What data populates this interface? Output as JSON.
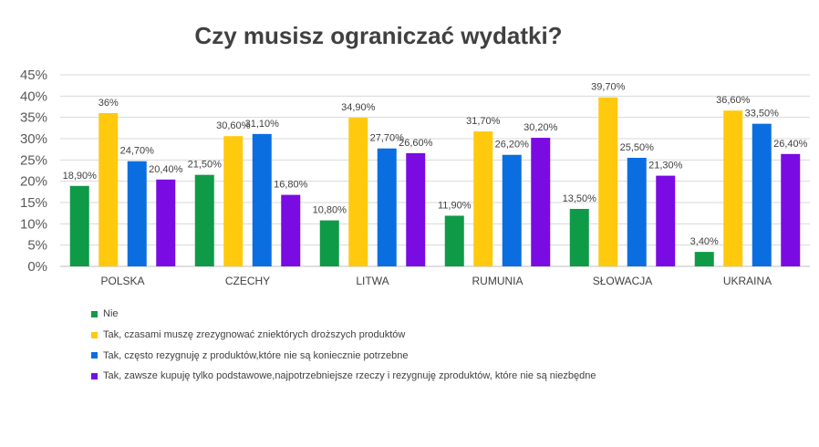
{
  "chart_data": {
    "type": "bar",
    "title": "Czy musisz ograniczać wydatki?",
    "categories": [
      "POLSKA",
      "CZECHY",
      "LITWA",
      "RUMUNIA",
      "SŁOWACJA",
      "UKRAINA"
    ],
    "series": [
      {
        "name": "Nie",
        "color": "#0f9a47",
        "values": [
          18.9,
          21.5,
          10.8,
          11.9,
          13.5,
          3.4
        ],
        "labels": [
          "18,90%",
          "21,50%",
          "10,80%",
          "11,90%",
          "13,50%",
          "3,40%"
        ]
      },
      {
        "name": "Tak, czasami muszę zrezygnować zniektórych droższych produktów",
        "color": "#ffc90e",
        "values": [
          36,
          30.6,
          34.9,
          31.7,
          39.7,
          36.6
        ],
        "labels": [
          "36%",
          "30,60%",
          "34,90%",
          "31,70%",
          "39,70%",
          "36,60%"
        ]
      },
      {
        "name": "Tak, często rezygnuję z produktów,które nie są koniecznie potrzebne",
        "color": "#0b6ee0",
        "values": [
          24.7,
          31.1,
          27.7,
          26.2,
          25.5,
          33.5
        ],
        "labels": [
          "24,70%",
          "31,10%",
          "27,70%",
          "26,20%",
          "25,50%",
          "33,50%"
        ]
      },
      {
        "name": "Tak, zawsze kupuję tylko podstawowe,najpotrzebniejsze rzeczy i rezygnuję zproduktów, które nie są niezbędne",
        "color": "#7a0be3",
        "values": [
          20.4,
          16.8,
          26.6,
          30.2,
          21.3,
          26.4
        ],
        "labels": [
          "20,40%",
          "16,80%",
          "26,60%",
          "30,20%",
          "21,30%",
          "26,40%"
        ]
      }
    ],
    "ylim": [
      0,
      45
    ],
    "yticks": [
      0,
      5,
      10,
      15,
      20,
      25,
      30,
      35,
      40,
      45
    ],
    "ytick_labels": [
      "0%",
      "5%",
      "10%",
      "15%",
      "20%",
      "25%",
      "30%",
      "35%",
      "40%",
      "45%"
    ],
    "grid": true,
    "legend_position": "bottom-left"
  }
}
